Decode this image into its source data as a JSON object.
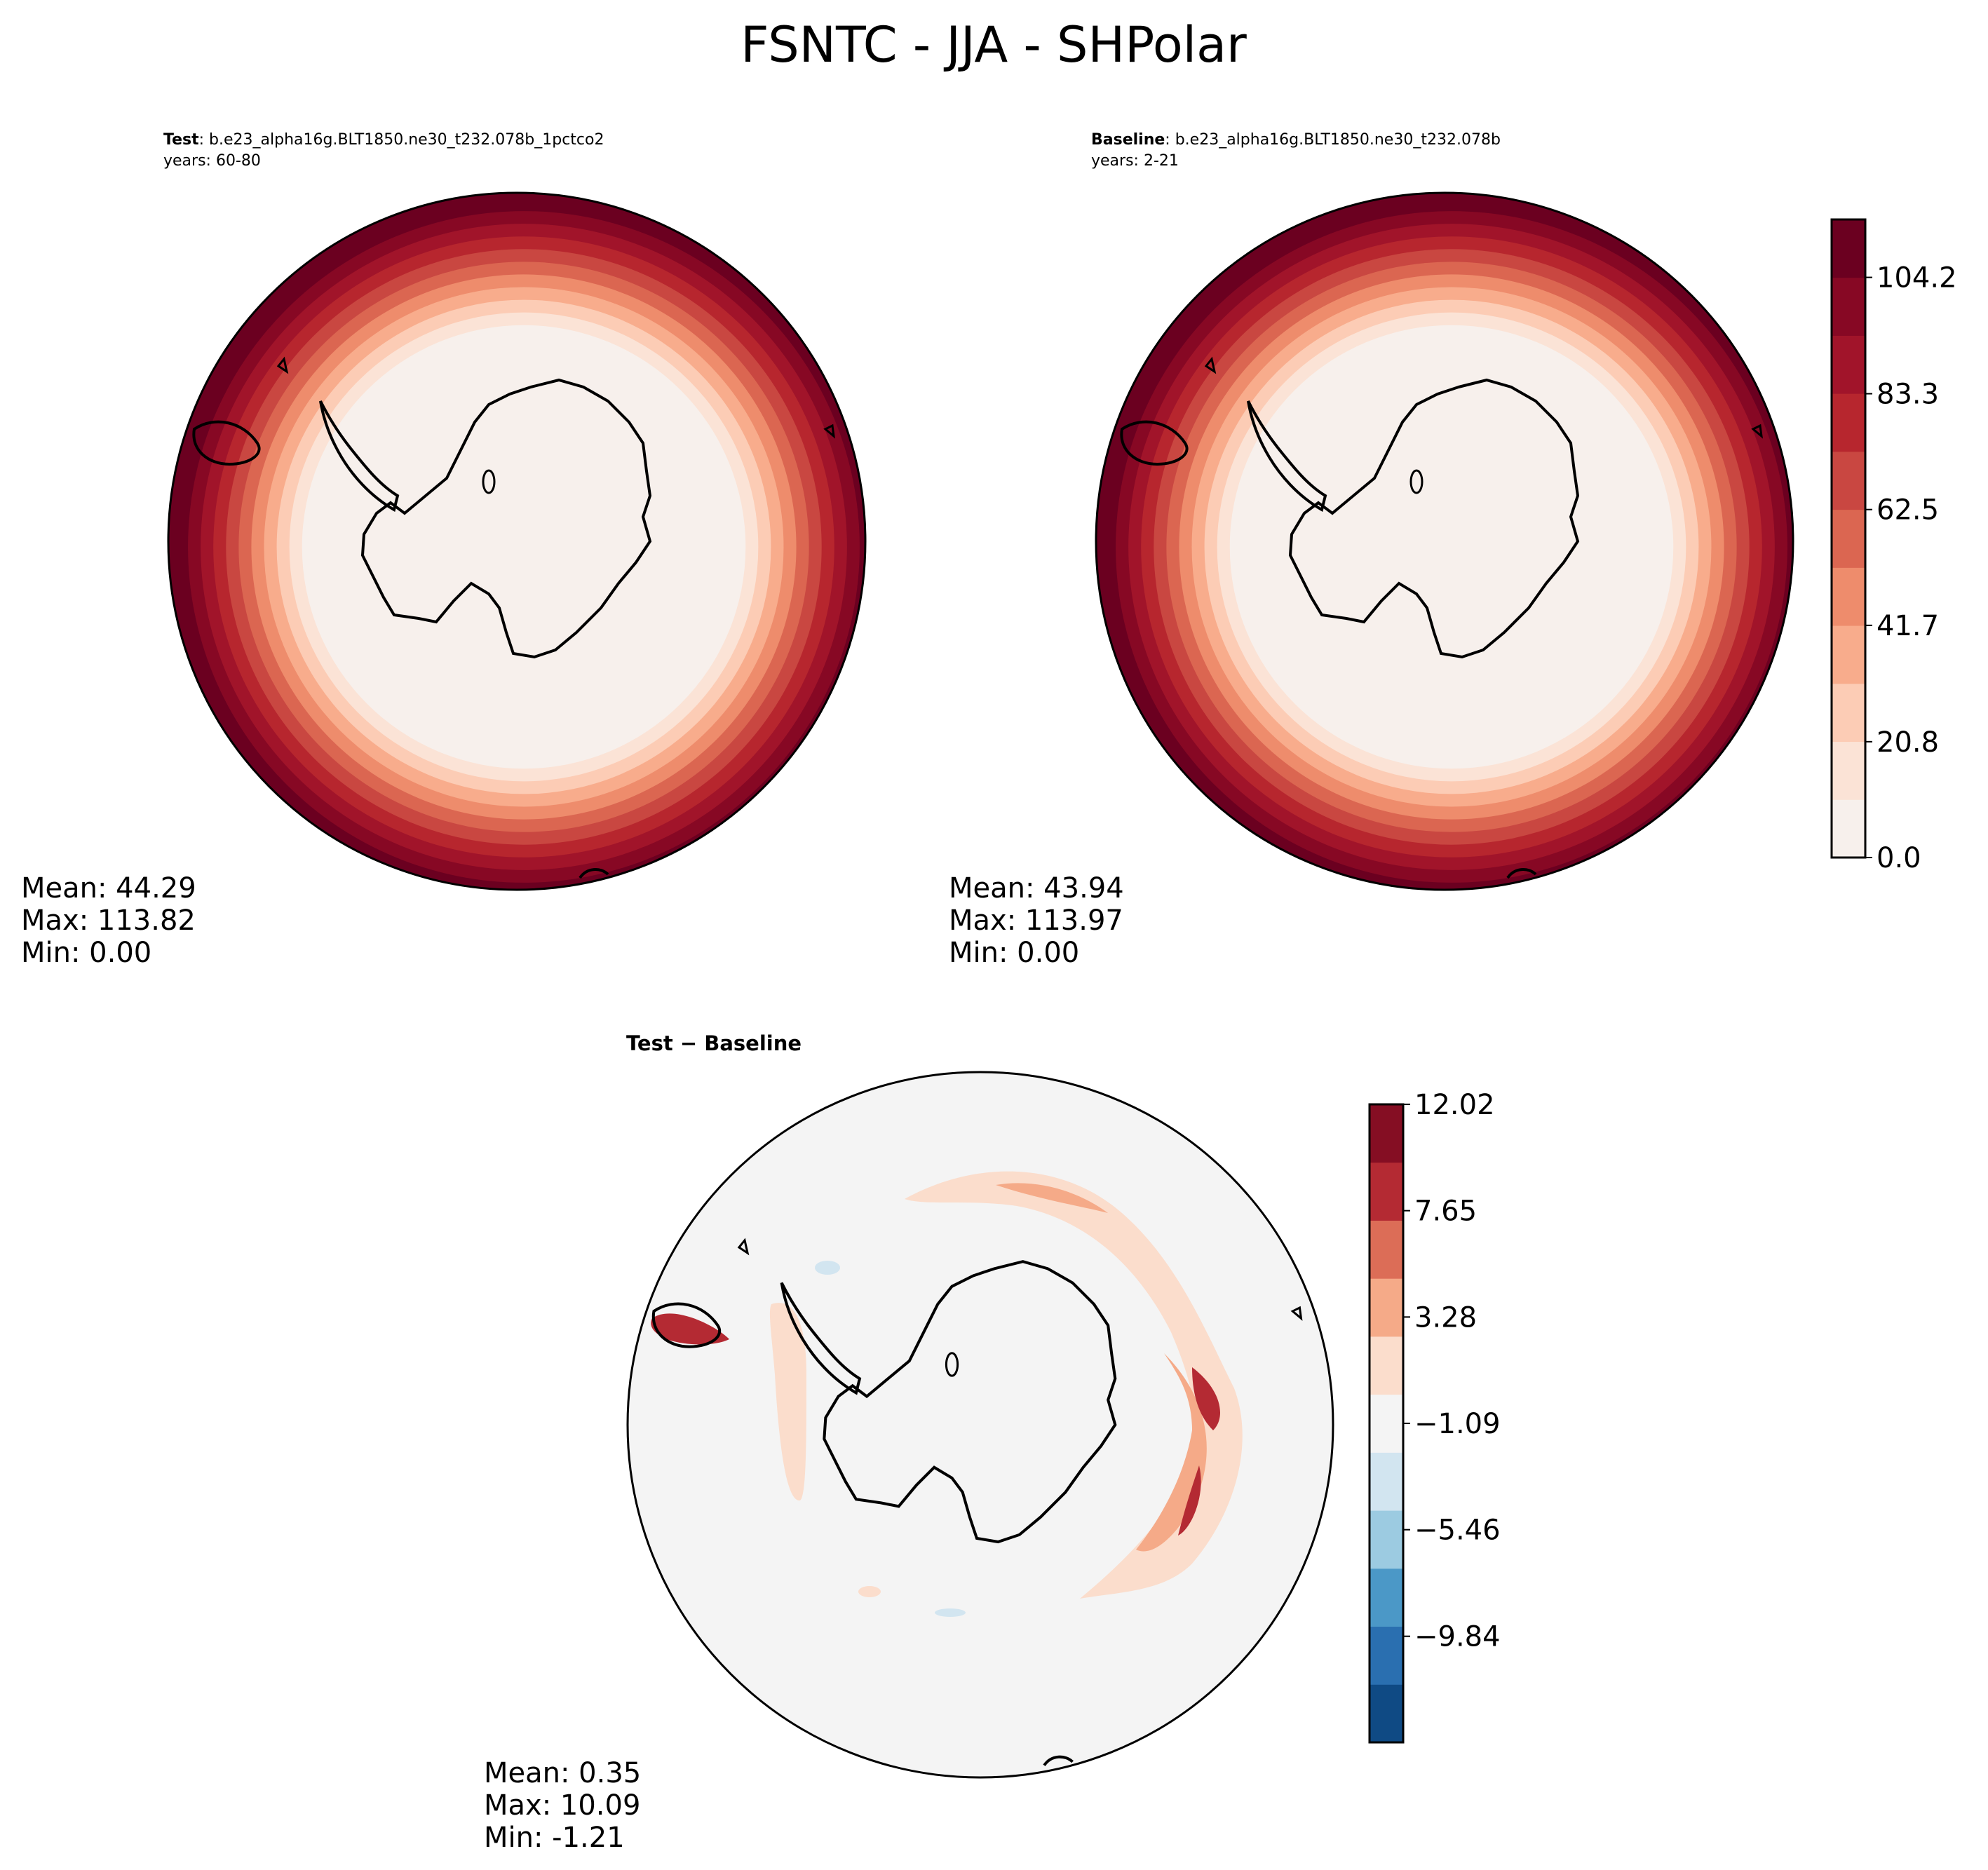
{
  "figure": {
    "title": "FSNTC - JJA - SHPolar"
  },
  "chart_data": [
    {
      "type": "heatmap",
      "panel": "test",
      "projection": "south-polar-stereographic",
      "title_bold": "Test",
      "title_rest": ": b.e23_alpha16g.BLT1850.ne30_t232.078b_1pctco2",
      "subtitle": "years: 60-80",
      "stats": {
        "mean": "Mean: 44.29",
        "max": "Max: 113.82",
        "min": "Min:  0.00"
      },
      "field": "concentric rings increasing from 0 near the pole to ~114 at the outer edge",
      "levels": [
        0.0,
        10.4,
        20.8,
        31.3,
        41.7,
        52.1,
        62.5,
        72.9,
        83.3,
        93.8,
        104.2,
        114.6
      ]
    },
    {
      "type": "heatmap",
      "panel": "baseline",
      "projection": "south-polar-stereographic",
      "title_bold": "Baseline",
      "title_rest": ": b.e23_alpha16g.BLT1850.ne30_t232.078b",
      "subtitle": "years: 2-21",
      "stats": {
        "mean": "Mean: 43.94",
        "max": "Max: 113.97",
        "min": "Min:  0.00"
      },
      "field": "concentric rings increasing from 0 near the pole to ~114 at the outer edge",
      "colorbar": {
        "ticks": [
          "104.2",
          "83.3",
          "62.5",
          "41.7",
          "20.8",
          "0.0"
        ],
        "tick_values": [
          104.2,
          83.3,
          62.5,
          41.7,
          20.8,
          0.0
        ],
        "range": [
          0.0,
          114.6
        ],
        "colors": [
          "#f7f0ec",
          "#fbe3d6",
          "#fcccb5",
          "#f8ac8c",
          "#ee8c6c",
          "#db6651",
          "#c94741",
          "#b7262e",
          "#a1142a",
          "#870824",
          "#6b0020"
        ]
      }
    },
    {
      "type": "heatmap",
      "panel": "difference",
      "projection": "south-polar-stereographic",
      "title": "Test − Baseline",
      "stats": {
        "mean": "Mean:  0.35",
        "max": "Max: 10.09",
        "min": "Min: -1.21"
      },
      "field": "near-zero everywhere with a positive band (up to ~10) around the sea-ice edge",
      "colorbar": {
        "ticks": [
          "12.02",
          "7.65",
          "3.28",
          "−1.09",
          "−5.46",
          "−9.84"
        ],
        "tick_values": [
          12.02,
          7.65,
          3.28,
          -1.09,
          -5.46,
          -9.84
        ],
        "range": [
          -14.2,
          12.02
        ],
        "colors": [
          "#0f4a84",
          "#2a6fb0",
          "#4b98c7",
          "#9ccbe1",
          "#d2e5f0",
          "#f4f4f4",
          "#fbddcc",
          "#f5aa88",
          "#dc6d57",
          "#b42a33",
          "#850e23"
        ]
      }
    }
  ]
}
